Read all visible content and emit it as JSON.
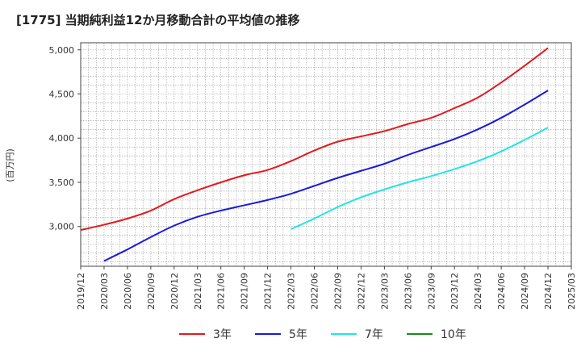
{
  "chart_data": {
    "type": "line",
    "title": "[1775]  当期純利益12か月移動合計の平均値の推移",
    "ylabel": "(百万円)",
    "xlabel": "",
    "ylim": [
      2550,
      5080
    ],
    "yticks": [
      3000,
      3500,
      4000,
      4500,
      5000
    ],
    "ytick_labels": [
      "3,000",
      "3,500",
      "4,000",
      "4,500",
      "5,000"
    ],
    "xticks": [
      "2019/12",
      "2020/03",
      "2020/06",
      "2020/09",
      "2020/12",
      "2021/03",
      "2021/06",
      "2021/09",
      "2021/12",
      "2022/03",
      "2022/06",
      "2022/09",
      "2022/12",
      "2023/03",
      "2023/06",
      "2023/09",
      "2023/12",
      "2024/03",
      "2024/06",
      "2024/09",
      "2024/12",
      "2025/03"
    ],
    "grid": true,
    "legend_position": "bottom",
    "series": [
      {
        "name": "3年",
        "color": "#e31a1c",
        "x": [
          "2019/12",
          "2020/03",
          "2020/06",
          "2020/09",
          "2020/12",
          "2021/03",
          "2021/06",
          "2021/09",
          "2021/12",
          "2022/03",
          "2022/06",
          "2022/09",
          "2022/12",
          "2023/03",
          "2023/06",
          "2023/09",
          "2023/12",
          "2024/03",
          "2024/06",
          "2024/09",
          "2024/12"
        ],
        "values": [
          2960,
          3020,
          3090,
          3180,
          3310,
          3410,
          3500,
          3580,
          3640,
          3740,
          3860,
          3960,
          4020,
          4080,
          4160,
          4230,
          4340,
          4460,
          4630,
          4820,
          5020
        ]
      },
      {
        "name": "5年",
        "color": "#1a1adb",
        "x": [
          "2020/03",
          "2020/06",
          "2020/09",
          "2020/12",
          "2021/03",
          "2021/06",
          "2021/09",
          "2021/12",
          "2022/03",
          "2022/06",
          "2022/09",
          "2022/12",
          "2023/03",
          "2023/06",
          "2023/09",
          "2023/12",
          "2024/03",
          "2024/06",
          "2024/09",
          "2024/12"
        ],
        "values": [
          2610,
          2740,
          2880,
          3010,
          3110,
          3180,
          3240,
          3300,
          3370,
          3460,
          3550,
          3630,
          3710,
          3810,
          3900,
          3990,
          4100,
          4230,
          4380,
          4540
        ]
      },
      {
        "name": "7年",
        "color": "#22e5e5",
        "x": [
          "2022/03",
          "2022/06",
          "2022/09",
          "2022/12",
          "2023/03",
          "2023/06",
          "2023/09",
          "2023/12",
          "2024/03",
          "2024/06",
          "2024/09",
          "2024/12"
        ],
        "values": [
          2970,
          3090,
          3220,
          3330,
          3420,
          3500,
          3570,
          3650,
          3740,
          3850,
          3980,
          4120
        ]
      },
      {
        "name": "10年",
        "color": "#1a8a1a",
        "x": [],
        "values": []
      }
    ]
  }
}
